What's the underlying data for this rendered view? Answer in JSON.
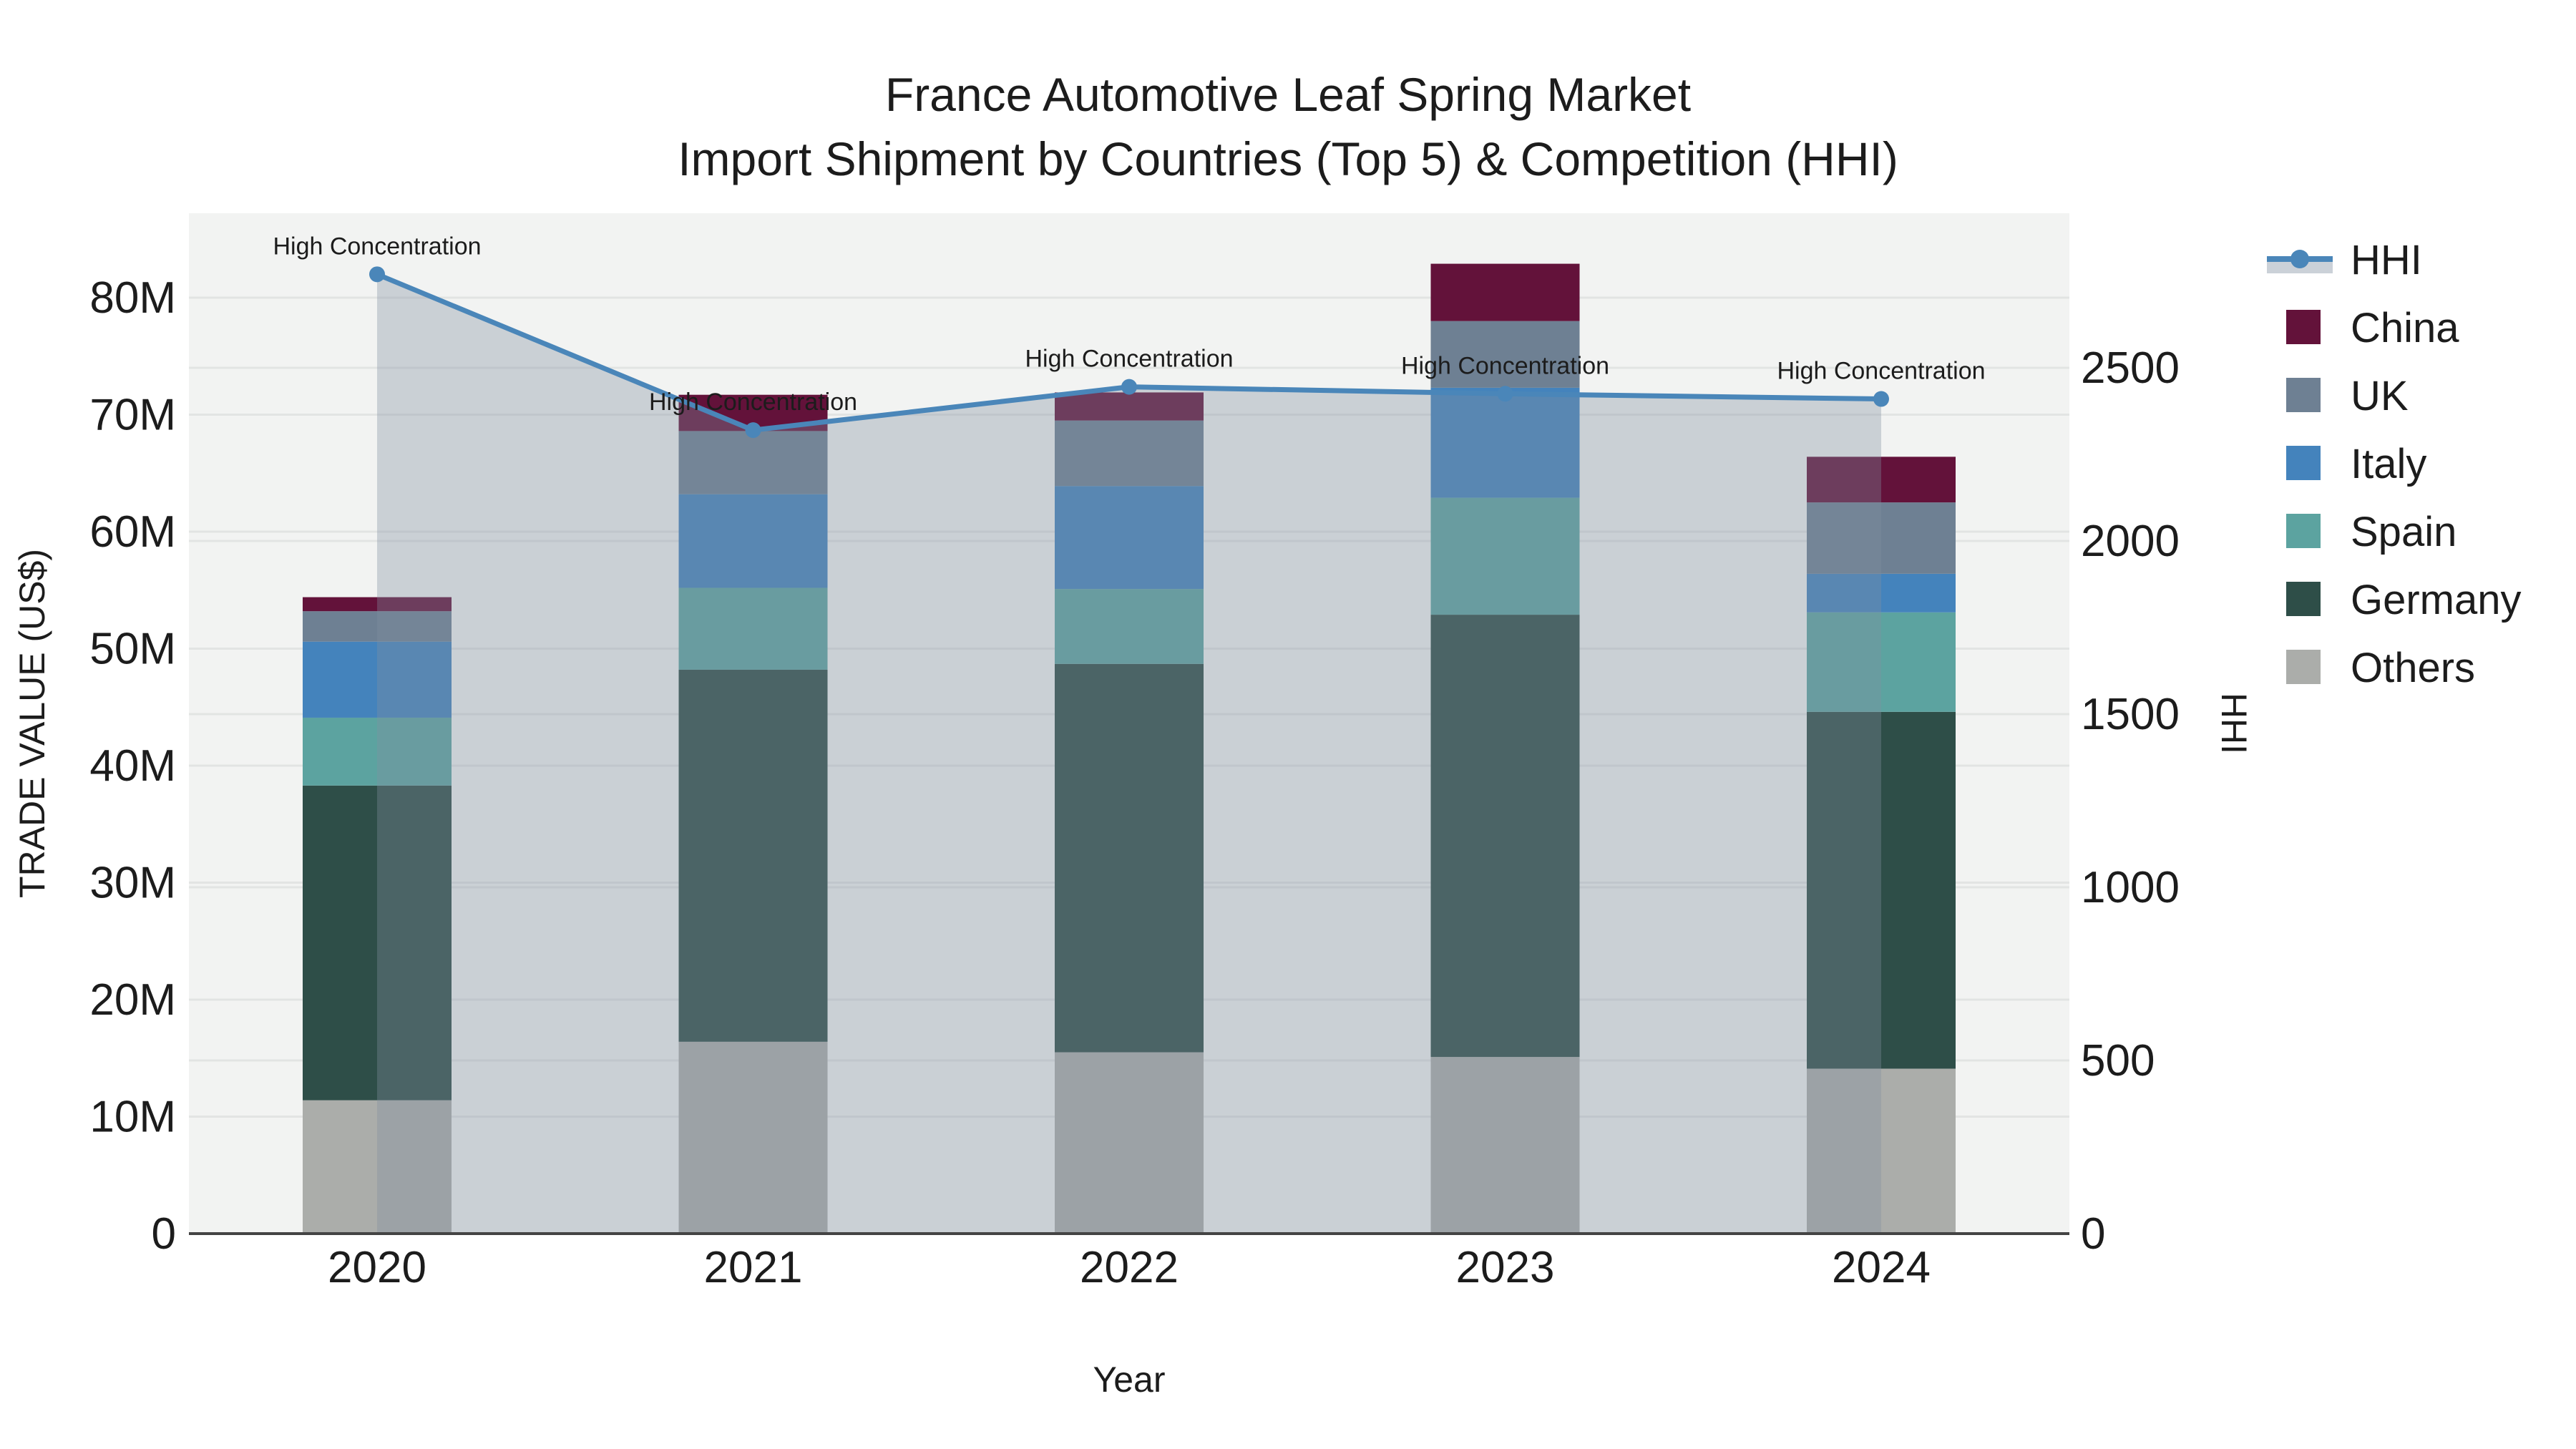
{
  "title": {
    "line1": "France Automotive Leaf Spring Market",
    "line2": "Import Shipment by Countries (Top 5) & Competition (HHI)"
  },
  "chart_data": {
    "type": "bar",
    "subtype": "stacked-bars-with-hhi-line-and-area-fill",
    "categories": [
      "2020",
      "2021",
      "2022",
      "2023",
      "2024"
    ],
    "stack_order_bottom_to_top": [
      "Others",
      "Germany",
      "Spain",
      "Italy",
      "UK",
      "China"
    ],
    "series": [
      {
        "name": "Others",
        "color": "#ABADAA",
        "values": [
          11.4,
          16.4,
          15.5,
          15.1,
          14.1
        ]
      },
      {
        "name": "Germany",
        "color": "#2E4E48",
        "values": [
          26.9,
          31.8,
          33.2,
          37.8,
          30.5
        ]
      },
      {
        "name": "Spain",
        "color": "#5CA3A0",
        "values": [
          5.8,
          7.0,
          6.4,
          10.0,
          8.5
        ]
      },
      {
        "name": "Italy",
        "color": "#4483BC",
        "values": [
          6.5,
          8.0,
          8.8,
          9.4,
          3.3
        ]
      },
      {
        "name": "UK",
        "color": "#6E8093",
        "values": [
          2.6,
          5.4,
          5.6,
          5.7,
          6.1
        ]
      },
      {
        "name": "China",
        "color": "#63123A",
        "values": [
          1.2,
          3.1,
          2.4,
          4.9,
          3.9
        ]
      }
    ],
    "bar_totals_musd": [
      54.4,
      71.7,
      71.9,
      82.9,
      66.4
    ],
    "line_series": {
      "name": "HHI",
      "values": [
        2770,
        2320,
        2445,
        2425,
        2410
      ],
      "color": "#4A86B9",
      "fill_color": "rgba(128,143,160,0.35)",
      "fill_solid_over_bg": "#CBD1D8"
    },
    "annotations": {
      "text": "High Concentration",
      "years": [
        "2020",
        "2021",
        "2022",
        "2023",
        "2024"
      ]
    },
    "axes": {
      "x": {
        "title": "Year",
        "tick_labels": [
          "2020",
          "2021",
          "2022",
          "2023",
          "2024"
        ]
      },
      "y_left": {
        "title": "TRADE VALUE (US$)",
        "tick_labels": [
          "0",
          "10M",
          "20M",
          "30M",
          "40M",
          "50M",
          "60M",
          "70M",
          "80M"
        ],
        "tick_values_musd": [
          0,
          10,
          20,
          30,
          40,
          50,
          60,
          70,
          80
        ],
        "range_max_musd": 87.2
      },
      "y_right": {
        "title": "HHI",
        "tick_labels": [
          "0",
          "500",
          "1000",
          "1500",
          "2000",
          "2500"
        ],
        "tick_values": [
          0,
          500,
          1000,
          1500,
          2000,
          2500
        ],
        "range_max": 2948
      }
    },
    "legend": {
      "items": [
        {
          "label": "HHI",
          "type": "line-with-band"
        },
        {
          "label": "China",
          "type": "swatch",
          "color": "#63123A"
        },
        {
          "label": "UK",
          "type": "swatch",
          "color": "#6E8093"
        },
        {
          "label": "Italy",
          "type": "swatch",
          "color": "#4483BC"
        },
        {
          "label": "Spain",
          "type": "swatch",
          "color": "#5CA3A0"
        },
        {
          "label": "Germany",
          "type": "swatch",
          "color": "#2E4E48"
        },
        {
          "label": "Others",
          "type": "swatch",
          "color": "#ABADAA"
        }
      ]
    },
    "colors": {
      "plot_bg": "#F2F3F2",
      "grid": "#E2E4E3",
      "axis_line": "#444444",
      "text": "#1C1C1C",
      "outer_bg": "#FFFFFF"
    }
  }
}
